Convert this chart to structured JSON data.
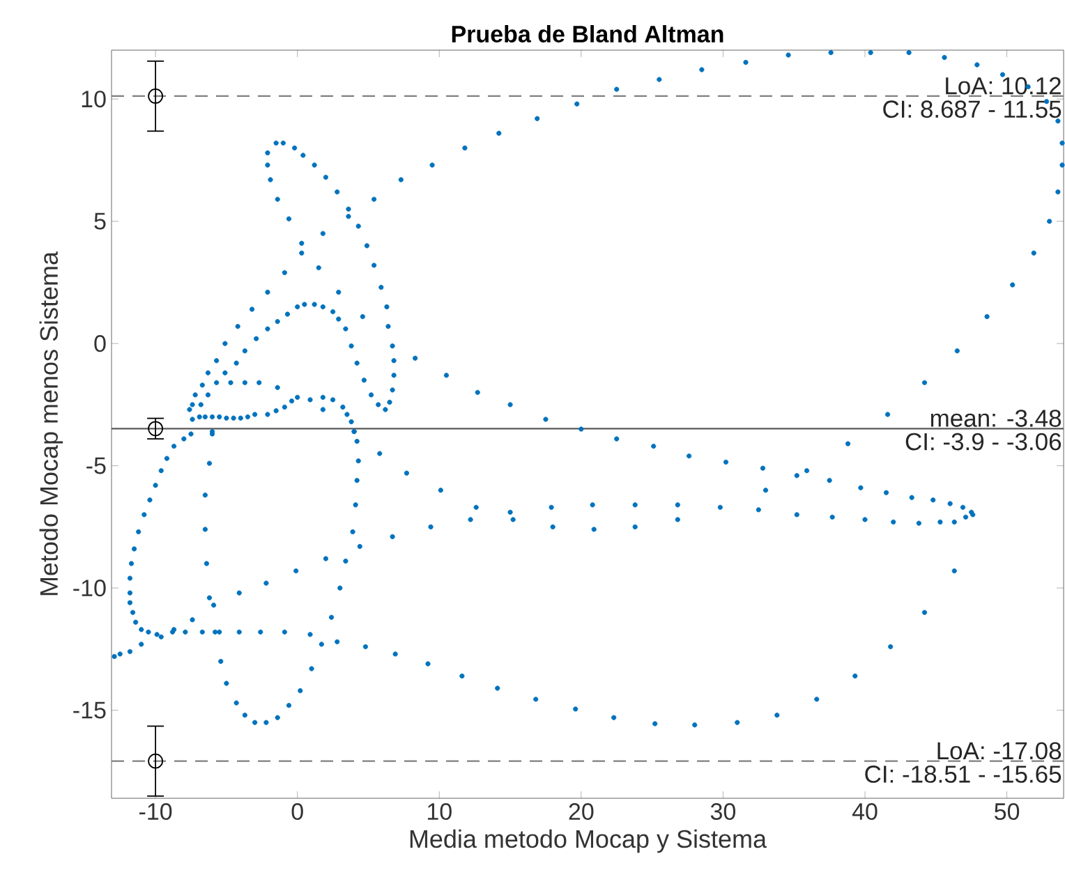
{
  "chart_data": {
    "type": "scatter",
    "title": "Prueba de Bland Altman",
    "xlabel": "Media metodo Mocap y Sistema",
    "ylabel": "Metodo Mocap menos Sistema",
    "xlim": [
      -13.1,
      54
    ],
    "ylim": [
      -18.6,
      12
    ],
    "xticks": [
      -10,
      0,
      10,
      20,
      30,
      40,
      50
    ],
    "yticks": [
      -15,
      -10,
      -5,
      0,
      5,
      10
    ],
    "grid": false,
    "series": [
      {
        "color": "#0072bd",
        "marker": "circle",
        "x": [
          -2.1,
          -2.1,
          -1.9,
          -1.4,
          -0.6,
          -0.9,
          -2.1,
          -3.2,
          -4.2,
          -5.1,
          -5.7,
          -6.3,
          -6.7,
          -7.2,
          -7.4,
          -7.6,
          -1.5,
          -1.0,
          -0.2,
          0.4,
          1.2,
          2.0,
          2.8,
          3.6,
          3.6,
          4.3,
          4.9,
          5.4,
          5.9,
          6.3,
          6.4,
          6.7,
          6.8,
          6.8,
          6.7,
          6.5,
          6.2,
          5.7,
          5.2,
          4.7,
          4.2,
          3.8,
          3.4,
          2.9,
          2.5,
          1.8,
          1.2,
          0.5,
          0.0,
          -0.7,
          -1.4,
          -2.1,
          -2.9,
          -3.7,
          -4.3,
          -5.1,
          -5.7,
          -6.3,
          -6.8,
          0.3,
          0.3,
          1.8,
          1.5,
          2.9,
          4.6,
          5.4,
          7.3,
          -4.7,
          -3.7,
          -2.7,
          -1.4,
          -7.4,
          -6.9,
          -6.5,
          -6.0,
          -5.5,
          -5.0,
          -4.5,
          -4.0,
          -3.5,
          -3.0,
          -2.1,
          -1.5,
          -0.9,
          -0.4,
          0.0,
          0.9,
          1.8,
          2.5,
          3.2,
          3.5,
          3.8,
          4.0,
          1.8,
          -6.0,
          9.5,
          11.8,
          14.2,
          16.9,
          19.7,
          22.5,
          25.5,
          28.5,
          31.6,
          34.6,
          37.6,
          40.4,
          43.1,
          45.6,
          47.9,
          49.7,
          51.5,
          52.8,
          53.6,
          53.9,
          53.9,
          53.6,
          53.0,
          51.9,
          50.4,
          48.6,
          46.5,
          44.2,
          41.6,
          8.3,
          10.5,
          12.7,
          15.0,
          17.5,
          20.0,
          22.5,
          25.1,
          27.6,
          30.2,
          32.8,
          35.9,
          35.2,
          37.5,
          39.7,
          41.5,
          43.3,
          44.8,
          46.0,
          46.9,
          47.5,
          47.6,
          47.1,
          46.3,
          45.3,
          43.8,
          42.0,
          40.0,
          37.7,
          35.2,
          32.5,
          33.0,
          29.8,
          26.8,
          26.8,
          23.8,
          23.8,
          20.8,
          20.9,
          17.9,
          18.0,
          15.0,
          15.2,
          12.6,
          12.2,
          10.1,
          9.4,
          7.7,
          6.7,
          38.8,
          6.9,
          9.2,
          11.6,
          14.1,
          16.8,
          19.6,
          22.3,
          25.2,
          28.0,
          31.0,
          33.8,
          36.6,
          39.3,
          41.8,
          44.2,
          46.3,
          -7.5,
          -8.0,
          -8.7,
          -9.2,
          -9.6,
          -10.0,
          -10.4,
          -10.8,
          -11.2,
          -11.5,
          -11.7,
          -11.8,
          -11.8,
          -11.8,
          -11.6,
          -11.4,
          -11.0,
          -10.5,
          -9.9,
          -9.6,
          -12.9,
          -12.5,
          -11.8,
          -11.0,
          -8.8,
          -7.9,
          -6.7,
          -5.8,
          -5.5,
          -4.1,
          -2.6,
          -0.9,
          -8.7,
          -7.4,
          -6.2,
          -6.5,
          -6.5,
          -6.4,
          -6.2,
          -5.9,
          -6.0,
          -5.4,
          -5.0,
          -4.3,
          -3.7,
          -3.0,
          -2.2,
          -1.4,
          -0.6,
          0.2,
          1.0,
          1.7,
          0.9,
          2.8,
          2.4,
          3.0,
          2.0,
          3.4,
          4.4,
          3.9,
          4.1,
          4.2,
          4.3,
          4.2,
          4.0,
          5.8,
          4.8,
          -0.1,
          -2.2,
          -4.1
        ],
        "values": [
          7.8,
          7.3,
          6.7,
          5.9,
          5.1,
          2.9,
          2.1,
          1.4,
          0.7,
          0,
          -0.7,
          -1.2,
          -1.7,
          -2.1,
          -2.5,
          -2.7,
          8.2,
          8.2,
          8.0,
          7.7,
          7.3,
          6.8,
          6.2,
          5.5,
          5.2,
          4.8,
          4.0,
          3.2,
          2.3,
          1.5,
          0.7,
          -0.1,
          -0.7,
          -1.3,
          -1.9,
          -2.4,
          -2.7,
          -2.5,
          -2.1,
          -1.5,
          -0.8,
          -0.1,
          0.6,
          1.0,
          1.3,
          1.5,
          1.6,
          1.6,
          1.5,
          1.2,
          0.9,
          0.6,
          0.2,
          -0.3,
          -0.8,
          -1.2,
          -1.6,
          -2.1,
          -2.5,
          4.1,
          3.7,
          4.5,
          3.1,
          2.1,
          1.1,
          5.9,
          6.7,
          -1.6,
          -1.6,
          -1.6,
          -1.8,
          -3.1,
          -3.0,
          -3.0,
          -3.0,
          -3.0,
          -3.05,
          -3.05,
          -3.05,
          -3.0,
          -2.9,
          -2.9,
          -2.75,
          -2.6,
          -2.35,
          -2.2,
          -2.3,
          -2.2,
          -2.3,
          -2.6,
          -2.9,
          -3.2,
          -3.6,
          -2.7,
          -3.6,
          7.3,
          8.0,
          8.6,
          9.2,
          9.8,
          10.4,
          10.8,
          11.2,
          11.5,
          11.8,
          11.9,
          11.9,
          11.9,
          11.7,
          11.4,
          11.0,
          10.5,
          9.9,
          9.1,
          8.2,
          7.3,
          6.2,
          5.0,
          3.7,
          2.4,
          1.1,
          -0.3,
          -1.6,
          -2.9,
          -0.6,
          -1.3,
          -2.0,
          -2.5,
          -3.1,
          -3.5,
          -3.9,
          -4.2,
          -4.6,
          -4.85,
          -5.1,
          -5.2,
          -5.4,
          -5.6,
          -5.9,
          -6.1,
          -6.3,
          -6.4,
          -6.55,
          -6.7,
          -6.9,
          -7.0,
          -7.1,
          -7.3,
          -7.3,
          -7.35,
          -7.3,
          -7.2,
          -7.1,
          -7.0,
          -6.8,
          -6.0,
          -6.7,
          -6.6,
          -7.2,
          -6.6,
          -7.5,
          -6.6,
          -7.6,
          -6.7,
          -7.5,
          -6.9,
          -7.2,
          -6.7,
          -7.2,
          -6.0,
          -7.5,
          -5.3,
          -7.9,
          -4.1,
          -12.7,
          -13.1,
          -13.6,
          -14.1,
          -14.55,
          -14.95,
          -15.3,
          -15.55,
          -15.6,
          -15.5,
          -15.2,
          -14.55,
          -13.6,
          -12.4,
          -11.0,
          -9.3,
          -3.7,
          -3.9,
          -4.2,
          -4.7,
          -5.2,
          -5.8,
          -6.4,
          -7.0,
          -7.7,
          -8.4,
          -9.0,
          -9.6,
          -10.2,
          -10.6,
          -11.0,
          -11.4,
          -11.7,
          -11.8,
          -11.9,
          -12.0,
          -12.8,
          -12.7,
          -12.6,
          -12.3,
          -11.8,
          -11.8,
          -11.8,
          -11.8,
          -11.8,
          -11.8,
          -11.8,
          -11.8,
          -11.7,
          -11.3,
          -4.9,
          -6.2,
          -7.6,
          -9.0,
          -10.4,
          -10.7,
          -3.7,
          -13.0,
          -13.9,
          -14.7,
          -15.2,
          -15.5,
          -15.5,
          -15.3,
          -14.8,
          -14.2,
          -13.3,
          -12.3,
          -11.9,
          -12.2,
          -11.2,
          -10.0,
          -8.8,
          -8.9,
          -8.3,
          -7.7,
          -6.6,
          -5.6,
          -4.8,
          -4.0,
          -3.6,
          -4.5,
          -12.4,
          -9.3,
          -9.8,
          -10.2
        ]
      },
      {
        "color": "#000000",
        "marker": "circle",
        "x": [
          -10,
          -10,
          -10
        ],
        "values": [
          10.12,
          -3.48,
          -17.08
        ],
        "errors": [
          [
            8.687,
            11.55
          ],
          [
            -3.9,
            -3.06
          ],
          [
            -18.51,
            -15.65
          ]
        ]
      }
    ],
    "ref_lines": [
      {
        "axis": "y",
        "value": 10.12,
        "label": "LoA: 10.12",
        "color": "#7f7f7f",
        "line_style": "dashed"
      },
      {
        "axis": "y",
        "value": -3.48,
        "label": "mean: -3.48",
        "color": "#595959",
        "line_style": "solid"
      },
      {
        "axis": "y",
        "value": -17.08,
        "label": "LoA: -17.08",
        "color": "#7f7f7f",
        "line_style": "dashed"
      }
    ],
    "annotations": [
      "CI: 8.687 - 11.55",
      "CI: -3.9 - -3.06",
      "CI: -18.51 - -15.65"
    ]
  }
}
